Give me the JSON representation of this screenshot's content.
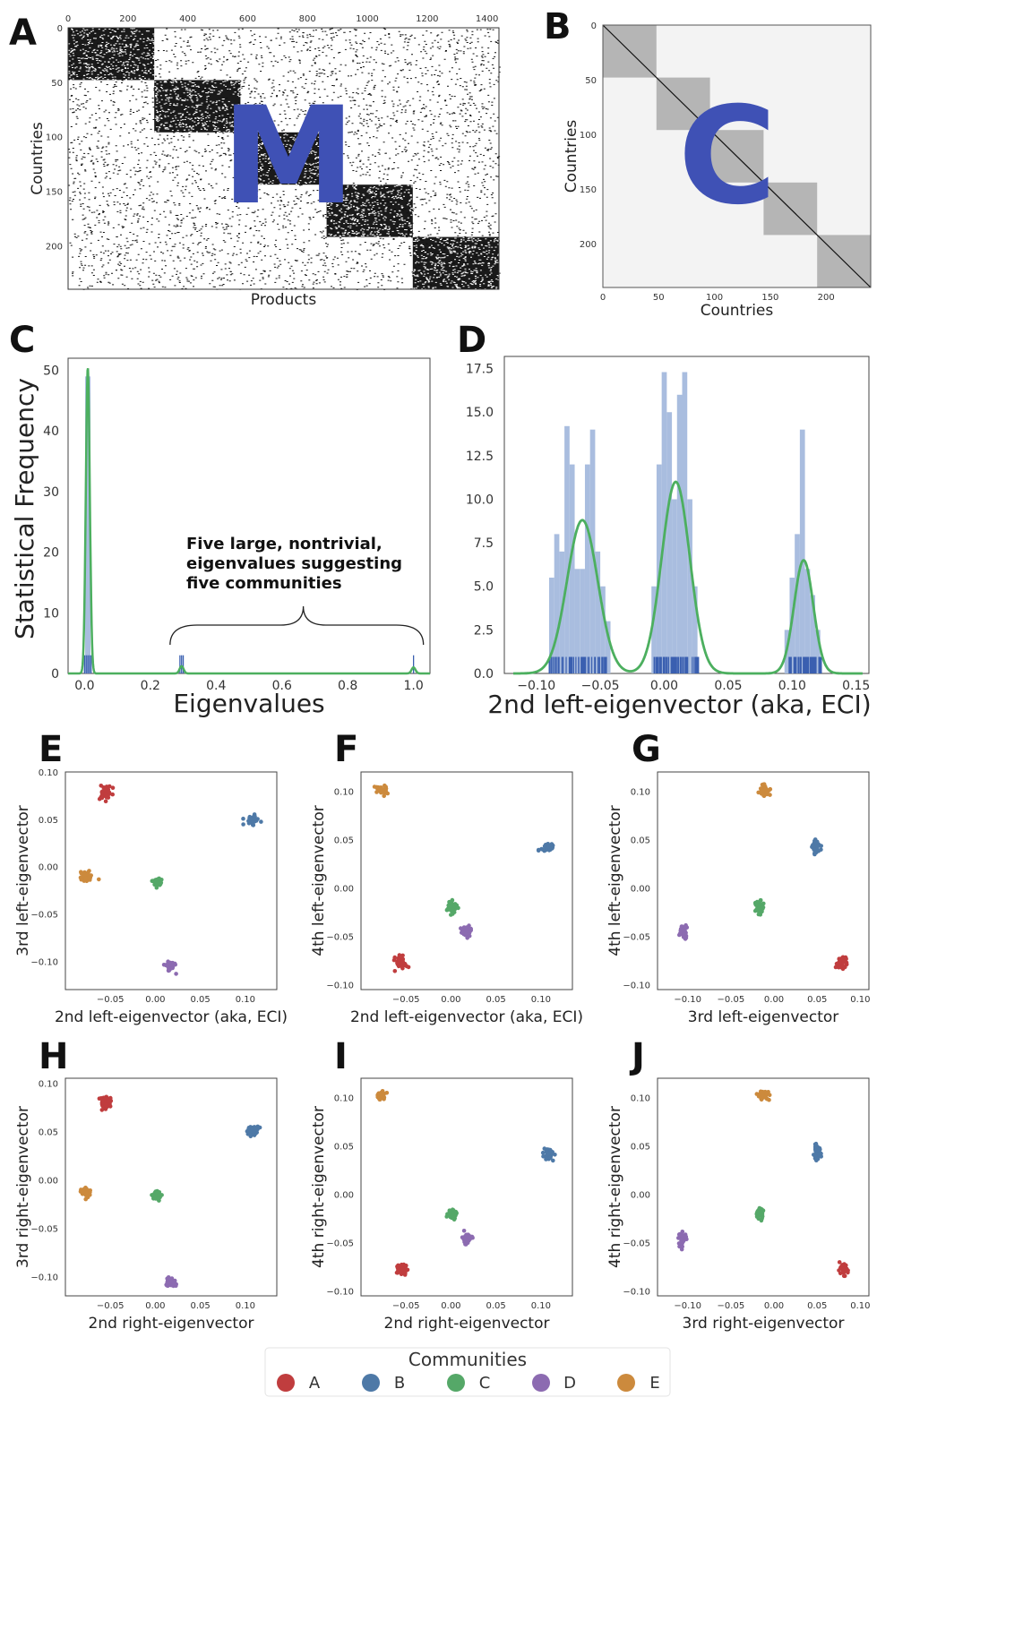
{
  "colors": {
    "A": "#c03d3e",
    "B": "#4e79a7",
    "C": "#55a868",
    "D": "#8c6bb1",
    "E": "#cc8a3d",
    "hist": "#a9bddf",
    "rug": "#3a5fb0",
    "kde": "#4caf5f",
    "overlay": "#3f51b5"
  },
  "panel_letters": [
    "A",
    "B",
    "C",
    "D",
    "E",
    "F",
    "G",
    "H",
    "I",
    "J"
  ],
  "overlay_letters": {
    "A": "M",
    "B": "C"
  },
  "annotation": [
    "Five large, nontrivial,",
    "eigenvalues suggesting",
    "five communities"
  ],
  "legend": {
    "title": "Communities",
    "items": [
      "A",
      "B",
      "C",
      "D",
      "E"
    ]
  },
  "chart_data": [
    {
      "id": "A",
      "type": "heatmap",
      "title": "",
      "xlabel": "Products",
      "ylabel": "Countries",
      "xlim": [
        0,
        1440
      ],
      "ylim": [
        0,
        240
      ],
      "xticks": [
        "0",
        "200",
        "400",
        "600",
        "800",
        "1000",
        "1200",
        "1400"
      ],
      "yticks": [
        "0",
        "50",
        "100",
        "150",
        "200"
      ],
      "blocks": [
        {
          "x": [
            0,
            288
          ],
          "y": [
            0,
            48
          ]
        },
        {
          "x": [
            288,
            576
          ],
          "y": [
            48,
            96
          ]
        },
        {
          "x": [
            576,
            864
          ],
          "y": [
            96,
            144
          ]
        },
        {
          "x": [
            864,
            1152
          ],
          "y": [
            144,
            192
          ]
        },
        {
          "x": [
            1152,
            1440
          ],
          "y": [
            192,
            240
          ]
        }
      ]
    },
    {
      "id": "B",
      "type": "heatmap",
      "title": "",
      "xlabel": "Countries",
      "ylabel": "Countries",
      "xlim": [
        0,
        240
      ],
      "ylim": [
        0,
        240
      ],
      "xticks": [
        "0",
        "50",
        "100",
        "150",
        "200"
      ],
      "yticks": [
        "0",
        "50",
        "100",
        "150",
        "200"
      ],
      "blocks": [
        [
          0,
          48
        ],
        [
          48,
          96
        ],
        [
          96,
          144
        ],
        [
          144,
          192
        ],
        [
          192,
          240
        ]
      ]
    },
    {
      "id": "C",
      "type": "bar",
      "xlabel": "Eigenvalues",
      "ylabel": "Statistical Frequency",
      "xlim": [
        -0.05,
        1.05
      ],
      "ylim": [
        0,
        52
      ],
      "xticks": [
        "0.0",
        "0.2",
        "0.4",
        "0.6",
        "0.8",
        "1.0"
      ],
      "yticks": [
        "0",
        "10",
        "20",
        "30",
        "40",
        "50"
      ],
      "histogram": [
        {
          "x": 0.01,
          "value": 49
        }
      ],
      "rug": [
        0.0,
        0.005,
        0.01,
        0.015,
        0.02,
        0.29,
        0.295,
        0.3,
        1.0
      ],
      "kde_peaks": [
        {
          "x": 0.01,
          "height": 50.5,
          "sd": 0.006
        },
        {
          "x": 0.295,
          "height": 1.2,
          "sd": 0.006
        },
        {
          "x": 1.0,
          "height": 1.0,
          "sd": 0.006
        }
      ]
    },
    {
      "id": "D",
      "type": "bar",
      "xlabel": "2nd left-eigenvector (aka, ECI)",
      "ylabel": "",
      "xlim": [
        -0.125,
        0.16
      ],
      "ylim": [
        0,
        18.2
      ],
      "xticks": [
        "−0.10",
        "−0.05",
        "0.00",
        "0.05",
        "0.10",
        "0.15"
      ],
      "yticks": [
        "0.0",
        "2.5",
        "5.0",
        "7.5",
        "10.0",
        "12.5",
        "15.0",
        "17.5"
      ],
      "bin_width": 0.004,
      "bins": [
        {
          "x": -0.088,
          "value": 5.5
        },
        {
          "x": -0.084,
          "value": 8.0
        },
        {
          "x": -0.08,
          "value": 7.0
        },
        {
          "x": -0.076,
          "value": 14.2
        },
        {
          "x": -0.072,
          "value": 12.0
        },
        {
          "x": -0.068,
          "value": 6.0
        },
        {
          "x": -0.064,
          "value": 6.0
        },
        {
          "x": -0.06,
          "value": 12.0
        },
        {
          "x": -0.056,
          "value": 14.0
        },
        {
          "x": -0.052,
          "value": 7.0
        },
        {
          "x": -0.048,
          "value": 5.0
        },
        {
          "x": -0.044,
          "value": 3.0
        },
        {
          "x": -0.008,
          "value": 5.0
        },
        {
          "x": -0.004,
          "value": 12.0
        },
        {
          "x": 0.0,
          "value": 17.3
        },
        {
          "x": 0.004,
          "value": 15.0
        },
        {
          "x": 0.008,
          "value": 10.0
        },
        {
          "x": 0.012,
          "value": 16.0
        },
        {
          "x": 0.016,
          "value": 17.3
        },
        {
          "x": 0.02,
          "value": 10.0
        },
        {
          "x": 0.024,
          "value": 5.0
        },
        {
          "x": 0.096,
          "value": 2.5
        },
        {
          "x": 0.1,
          "value": 5.5
        },
        {
          "x": 0.104,
          "value": 8.0
        },
        {
          "x": 0.108,
          "value": 14.0
        },
        {
          "x": 0.112,
          "value": 6.0
        },
        {
          "x": 0.116,
          "value": 4.5
        },
        {
          "x": 0.12,
          "value": 2.5
        }
      ],
      "rug_ranges": [
        [
          -0.09,
          -0.045
        ],
        [
          -0.008,
          0.027
        ],
        [
          0.096,
          0.123
        ]
      ],
      "kde_peaks": [
        {
          "x": -0.064,
          "height": 8.8,
          "sd": 0.012
        },
        {
          "x": 0.009,
          "height": 11.0,
          "sd": 0.011
        },
        {
          "x": 0.109,
          "height": 6.5,
          "sd": 0.0075
        }
      ]
    },
    {
      "id": "E",
      "type": "scatter",
      "xlabel": "2nd left-eigenvector (aka, ECI)",
      "ylabel": "3rd left-eigenvector",
      "xlim": [
        -0.1,
        0.135
      ],
      "ylim": [
        -0.13,
        0.1
      ],
      "xticks": [
        -0.05,
        0.0,
        0.05,
        0.1
      ],
      "yticks": [
        0.1,
        0.05,
        0.0,
        -0.05,
        -0.1
      ],
      "series": [
        {
          "name": "A",
          "center": [
            -0.055,
            0.078
          ],
          "spread": [
            0.006,
            0.007
          ],
          "n": 40
        },
        {
          "name": "B",
          "center": [
            0.107,
            0.049
          ],
          "spread": [
            0.007,
            0.004
          ],
          "n": 40
        },
        {
          "name": "C",
          "center": [
            0.002,
            -0.017
          ],
          "spread": [
            0.005,
            0.004
          ],
          "n": 40
        },
        {
          "name": "D",
          "center": [
            0.016,
            -0.105
          ],
          "spread": [
            0.005,
            0.005
          ],
          "n": 40
        },
        {
          "name": "E",
          "center": [
            -0.077,
            -0.011
          ],
          "spread": [
            0.006,
            0.005
          ],
          "n": 40
        }
      ]
    },
    {
      "id": "F",
      "type": "scatter",
      "xlabel": "2nd left-eigenvector (aka, ECI)",
      "ylabel": "4th left-eigenvector",
      "xlim": [
        -0.1,
        0.135
      ],
      "ylim": [
        -0.105,
        0.12
      ],
      "xticks": [
        -0.05,
        0.0,
        0.05,
        0.1
      ],
      "yticks": [
        0.1,
        0.05,
        0.0,
        -0.05,
        -0.1
      ],
      "series": [
        {
          "name": "A",
          "center": [
            -0.055,
            -0.077
          ],
          "spread": [
            0.006,
            0.006
          ],
          "n": 40
        },
        {
          "name": "B",
          "center": [
            0.108,
            0.042
          ],
          "spread": [
            0.007,
            0.005
          ],
          "n": 40
        },
        {
          "name": "C",
          "center": [
            0.001,
            -0.02
          ],
          "spread": [
            0.005,
            0.005
          ],
          "n": 40
        },
        {
          "name": "D",
          "center": [
            0.017,
            -0.045
          ],
          "spread": [
            0.005,
            0.005
          ],
          "n": 40
        },
        {
          "name": "E",
          "center": [
            -0.078,
            0.101
          ],
          "spread": [
            0.006,
            0.005
          ],
          "n": 40
        }
      ]
    },
    {
      "id": "G",
      "type": "scatter",
      "xlabel": "3rd left-eigenvector",
      "ylabel": "4th left-eigenvector",
      "xlim": [
        -0.135,
        0.11
      ],
      "ylim": [
        -0.105,
        0.12
      ],
      "xticks": [
        -0.1,
        -0.05,
        0.0,
        0.05,
        0.1
      ],
      "yticks": [
        0.1,
        0.05,
        0.0,
        -0.05,
        -0.1
      ],
      "series": [
        {
          "name": "A",
          "center": [
            0.078,
            -0.077
          ],
          "spread": [
            0.006,
            0.005
          ],
          "n": 40
        },
        {
          "name": "B",
          "center": [
            0.049,
            0.042
          ],
          "spread": [
            0.004,
            0.006
          ],
          "n": 40
        },
        {
          "name": "C",
          "center": [
            -0.017,
            -0.02
          ],
          "spread": [
            0.004,
            0.006
          ],
          "n": 40
        },
        {
          "name": "D",
          "center": [
            -0.105,
            -0.045
          ],
          "spread": [
            0.005,
            0.006
          ],
          "n": 40
        },
        {
          "name": "E",
          "center": [
            -0.011,
            0.101
          ],
          "spread": [
            0.005,
            0.006
          ],
          "n": 40
        }
      ]
    },
    {
      "id": "H",
      "type": "scatter",
      "xlabel": "2nd right-eigenvector",
      "ylabel": "3rd right-eigenvector",
      "xlim": [
        -0.1,
        0.135
      ],
      "ylim": [
        -0.12,
        0.105
      ],
      "xticks": [
        -0.05,
        0.0,
        0.05,
        0.1
      ],
      "yticks": [
        0.1,
        0.05,
        0.0,
        -0.05,
        -0.1
      ],
      "series": [
        {
          "name": "A",
          "center": [
            -0.055,
            0.08
          ],
          "spread": [
            0.006,
            0.006
          ],
          "n": 40
        },
        {
          "name": "B",
          "center": [
            0.108,
            0.051
          ],
          "spread": [
            0.006,
            0.004
          ],
          "n": 40
        },
        {
          "name": "C",
          "center": [
            0.002,
            -0.016
          ],
          "spread": [
            0.005,
            0.004
          ],
          "n": 40
        },
        {
          "name": "D",
          "center": [
            0.017,
            -0.106
          ],
          "spread": [
            0.005,
            0.004
          ],
          "n": 40
        },
        {
          "name": "E",
          "center": [
            -0.078,
            -0.012
          ],
          "spread": [
            0.005,
            0.005
          ],
          "n": 40
        }
      ]
    },
    {
      "id": "I",
      "type": "scatter",
      "xlabel": "2nd right-eigenvector",
      "ylabel": "4th right-eigenvector",
      "xlim": [
        -0.1,
        0.135
      ],
      "ylim": [
        -0.105,
        0.12
      ],
      "xticks": [
        -0.05,
        0.0,
        0.05,
        0.1
      ],
      "yticks": [
        0.1,
        0.05,
        0.0,
        -0.05,
        -0.1
      ],
      "series": [
        {
          "name": "A",
          "center": [
            -0.055,
            -0.078
          ],
          "spread": [
            0.006,
            0.005
          ],
          "n": 40
        },
        {
          "name": "B",
          "center": [
            0.109,
            0.042
          ],
          "spread": [
            0.005,
            0.006
          ],
          "n": 40
        },
        {
          "name": "C",
          "center": [
            0.001,
            -0.02
          ],
          "spread": [
            0.005,
            0.005
          ],
          "n": 40
        },
        {
          "name": "D",
          "center": [
            0.018,
            -0.046
          ],
          "spread": [
            0.005,
            0.005
          ],
          "n": 40
        },
        {
          "name": "E",
          "center": [
            -0.078,
            0.102
          ],
          "spread": [
            0.005,
            0.004
          ],
          "n": 40
        }
      ]
    },
    {
      "id": "J",
      "type": "scatter",
      "xlabel": "3rd right-eigenvector",
      "ylabel": "4th right-eigenvector",
      "xlim": [
        -0.135,
        0.11
      ],
      "ylim": [
        -0.105,
        0.12
      ],
      "xticks": [
        -0.1,
        -0.05,
        0.0,
        0.05,
        0.1
      ],
      "yticks": [
        0.1,
        0.05,
        0.0,
        -0.05,
        -0.1
      ],
      "series": [
        {
          "name": "A",
          "center": [
            0.08,
            -0.078
          ],
          "spread": [
            0.005,
            0.005
          ],
          "n": 40
        },
        {
          "name": "B",
          "center": [
            0.05,
            0.043
          ],
          "spread": [
            0.004,
            0.006
          ],
          "n": 40
        },
        {
          "name": "C",
          "center": [
            -0.017,
            -0.02
          ],
          "spread": [
            0.004,
            0.005
          ],
          "n": 40
        },
        {
          "name": "D",
          "center": [
            -0.106,
            -0.046
          ],
          "spread": [
            0.004,
            0.006
          ],
          "n": 40
        },
        {
          "name": "E",
          "center": [
            -0.012,
            0.102
          ],
          "spread": [
            0.006,
            0.004
          ],
          "n": 40
        }
      ]
    }
  ]
}
